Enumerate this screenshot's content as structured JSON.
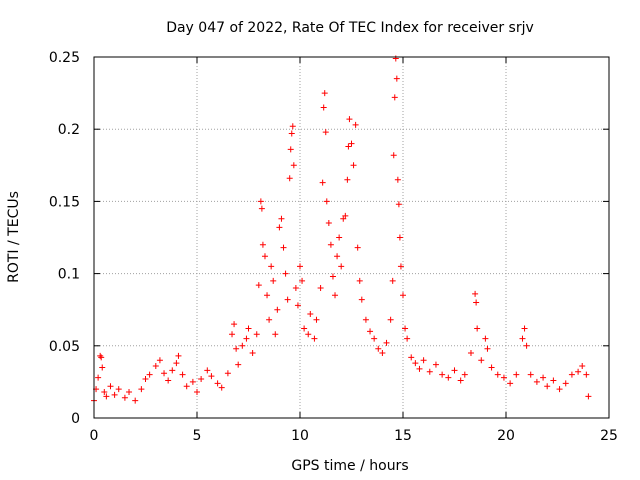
{
  "chart_data": {
    "type": "scatter",
    "title": "Day 047 of 2022, Rate Of TEC Index for receiver srjv",
    "xlabel": "GPS time / hours",
    "ylabel": "ROTI / TECUs",
    "xlim": [
      0,
      25
    ],
    "ylim": [
      0,
      0.25
    ],
    "x_ticks": [
      "0",
      "5",
      "10",
      "15",
      "20",
      "25"
    ],
    "y_ticks": [
      "0",
      "0.05",
      "0.1",
      "0.15",
      "0.2",
      "0.25"
    ],
    "grid": true,
    "marker": "+",
    "color": "#ff0000",
    "series": [
      {
        "points": [
          [
            0.0,
            0.012
          ],
          [
            0.1,
            0.02
          ],
          [
            0.2,
            0.028
          ],
          [
            0.3,
            0.043
          ],
          [
            0.35,
            0.042
          ],
          [
            0.4,
            0.035
          ],
          [
            0.5,
            0.018
          ],
          [
            0.6,
            0.015
          ],
          [
            0.8,
            0.022
          ],
          [
            1.0,
            0.016
          ],
          [
            1.2,
            0.02
          ],
          [
            1.5,
            0.014
          ],
          [
            1.7,
            0.018
          ],
          [
            2.0,
            0.012
          ],
          [
            2.3,
            0.02
          ],
          [
            2.5,
            0.027
          ],
          [
            2.7,
            0.03
          ],
          [
            3.0,
            0.036
          ],
          [
            3.2,
            0.04
          ],
          [
            3.4,
            0.031
          ],
          [
            3.6,
            0.026
          ],
          [
            3.8,
            0.033
          ],
          [
            4.0,
            0.038
          ],
          [
            4.1,
            0.043
          ],
          [
            4.3,
            0.03
          ],
          [
            4.5,
            0.022
          ],
          [
            4.8,
            0.025
          ],
          [
            5.0,
            0.018
          ],
          [
            5.2,
            0.027
          ],
          [
            5.5,
            0.033
          ],
          [
            5.7,
            0.029
          ],
          [
            6.0,
            0.024
          ],
          [
            6.2,
            0.021
          ],
          [
            6.5,
            0.031
          ],
          [
            6.7,
            0.058
          ],
          [
            6.8,
            0.065
          ],
          [
            6.9,
            0.048
          ],
          [
            7.0,
            0.037
          ],
          [
            7.2,
            0.05
          ],
          [
            7.4,
            0.055
          ],
          [
            7.5,
            0.062
          ],
          [
            7.7,
            0.045
          ],
          [
            7.9,
            0.058
          ],
          [
            8.0,
            0.092
          ],
          [
            8.1,
            0.15
          ],
          [
            8.15,
            0.145
          ],
          [
            8.2,
            0.12
          ],
          [
            8.3,
            0.112
          ],
          [
            8.4,
            0.085
          ],
          [
            8.5,
            0.068
          ],
          [
            8.6,
            0.105
          ],
          [
            8.7,
            0.095
          ],
          [
            8.8,
            0.058
          ],
          [
            8.9,
            0.075
          ],
          [
            9.0,
            0.132
          ],
          [
            9.1,
            0.138
          ],
          [
            9.2,
            0.118
          ],
          [
            9.3,
            0.1
          ],
          [
            9.4,
            0.082
          ],
          [
            9.5,
            0.166
          ],
          [
            9.55,
            0.186
          ],
          [
            9.6,
            0.197
          ],
          [
            9.65,
            0.202
          ],
          [
            9.7,
            0.175
          ],
          [
            9.8,
            0.09
          ],
          [
            9.9,
            0.078
          ],
          [
            10.0,
            0.105
          ],
          [
            10.1,
            0.095
          ],
          [
            10.2,
            0.062
          ],
          [
            10.4,
            0.058
          ],
          [
            10.5,
            0.072
          ],
          [
            10.7,
            0.055
          ],
          [
            10.8,
            0.068
          ],
          [
            11.0,
            0.09
          ],
          [
            11.1,
            0.163
          ],
          [
            11.15,
            0.215
          ],
          [
            11.2,
            0.225
          ],
          [
            11.25,
            0.198
          ],
          [
            11.3,
            0.15
          ],
          [
            11.4,
            0.135
          ],
          [
            11.5,
            0.12
          ],
          [
            11.6,
            0.098
          ],
          [
            11.7,
            0.085
          ],
          [
            11.8,
            0.112
          ],
          [
            11.9,
            0.125
          ],
          [
            12.0,
            0.105
          ],
          [
            12.1,
            0.138
          ],
          [
            12.2,
            0.14
          ],
          [
            12.3,
            0.165
          ],
          [
            12.35,
            0.188
          ],
          [
            12.4,
            0.207
          ],
          [
            12.5,
            0.19
          ],
          [
            12.6,
            0.175
          ],
          [
            12.7,
            0.203
          ],
          [
            12.8,
            0.118
          ],
          [
            12.9,
            0.095
          ],
          [
            13.0,
            0.082
          ],
          [
            13.2,
            0.068
          ],
          [
            13.4,
            0.06
          ],
          [
            13.6,
            0.055
          ],
          [
            13.8,
            0.048
          ],
          [
            14.0,
            0.045
          ],
          [
            14.2,
            0.052
          ],
          [
            14.4,
            0.068
          ],
          [
            14.5,
            0.095
          ],
          [
            14.55,
            0.182
          ],
          [
            14.6,
            0.222
          ],
          [
            14.65,
            0.249
          ],
          [
            14.7,
            0.235
          ],
          [
            14.75,
            0.165
          ],
          [
            14.8,
            0.148
          ],
          [
            14.85,
            0.125
          ],
          [
            14.9,
            0.105
          ],
          [
            15.0,
            0.085
          ],
          [
            15.1,
            0.062
          ],
          [
            15.2,
            0.055
          ],
          [
            15.4,
            0.042
          ],
          [
            15.6,
            0.038
          ],
          [
            15.8,
            0.034
          ],
          [
            16.0,
            0.04
          ],
          [
            16.3,
            0.032
          ],
          [
            16.6,
            0.037
          ],
          [
            16.9,
            0.03
          ],
          [
            17.2,
            0.028
          ],
          [
            17.5,
            0.033
          ],
          [
            17.8,
            0.026
          ],
          [
            18.0,
            0.03
          ],
          [
            18.3,
            0.045
          ],
          [
            18.5,
            0.086
          ],
          [
            18.55,
            0.08
          ],
          [
            18.6,
            0.062
          ],
          [
            18.8,
            0.04
          ],
          [
            19.0,
            0.055
          ],
          [
            19.1,
            0.048
          ],
          [
            19.3,
            0.035
          ],
          [
            19.6,
            0.03
          ],
          [
            19.9,
            0.028
          ],
          [
            20.2,
            0.024
          ],
          [
            20.5,
            0.03
          ],
          [
            20.8,
            0.055
          ],
          [
            20.9,
            0.062
          ],
          [
            21.0,
            0.05
          ],
          [
            21.2,
            0.03
          ],
          [
            21.5,
            0.025
          ],
          [
            21.8,
            0.028
          ],
          [
            22.0,
            0.022
          ],
          [
            22.3,
            0.026
          ],
          [
            22.6,
            0.02
          ],
          [
            22.9,
            0.024
          ],
          [
            23.2,
            0.03
          ],
          [
            23.5,
            0.032
          ],
          [
            23.7,
            0.036
          ],
          [
            23.9,
            0.03
          ],
          [
            24.0,
            0.015
          ]
        ]
      }
    ]
  }
}
